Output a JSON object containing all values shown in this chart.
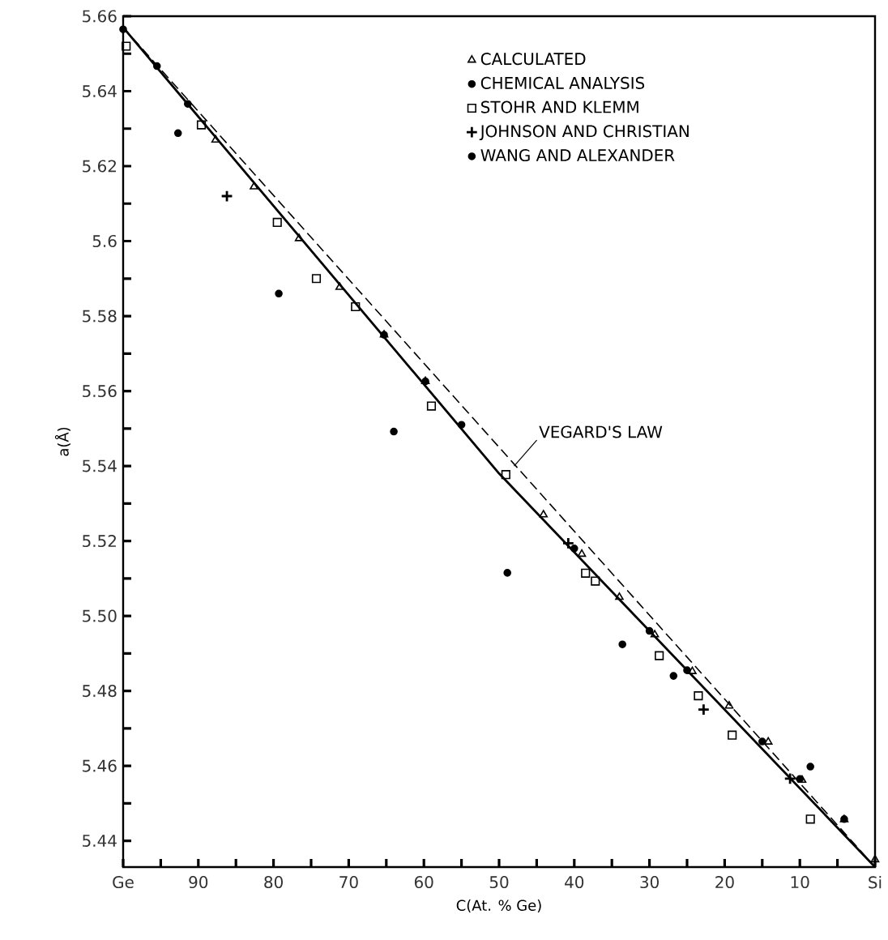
{
  "chart_data": {
    "type": "scatter",
    "xlabel": "C(At. % Ge)",
    "ylabel": "a(Å)",
    "xlim": [
      100,
      0
    ],
    "ylim": [
      5.433,
      5.66
    ],
    "xticks": [
      {
        "value": 100,
        "label": "Ge"
      },
      {
        "value": 95,
        "label": null
      },
      90,
      {
        "value": 85,
        "label": null
      },
      80,
      {
        "value": 75,
        "label": null
      },
      70,
      {
        "value": 65,
        "label": null
      },
      60,
      {
        "value": 55,
        "label": null
      },
      50,
      {
        "value": 45,
        "label": null
      },
      40,
      {
        "value": 35,
        "label": null
      },
      30,
      {
        "value": 25,
        "label": null
      },
      20,
      {
        "value": 15,
        "label": null
      },
      10,
      {
        "value": 5,
        "label": null
      },
      {
        "value": 0,
        "label": "Si"
      }
    ],
    "yticks": [
      5.66,
      {
        "value": 5.65,
        "label": null
      },
      5.64,
      {
        "value": 5.63,
        "label": null
      },
      5.62,
      {
        "value": 5.61,
        "label": null
      },
      5.6,
      {
        "value": 5.59,
        "label": null
      },
      5.58,
      {
        "value": 5.57,
        "label": null
      },
      5.56,
      {
        "value": 5.55,
        "label": null
      },
      5.54,
      {
        "value": 5.53,
        "label": null
      },
      5.52,
      {
        "value": 5.51,
        "label": null
      },
      {
        "value": 5.5,
        "label": "5.50"
      },
      {
        "value": 5.49,
        "label": null
      },
      5.48,
      {
        "value": 5.47,
        "label": null
      },
      5.46,
      {
        "value": 5.45,
        "label": null
      },
      5.44
    ],
    "legend": "top right",
    "grid": false,
    "annotations": [
      {
        "text": "VEGARD'S LAW",
        "x": 48,
        "y": 5.54
      }
    ],
    "series": [
      {
        "name": "CALCULATED",
        "marker": "triangle",
        "color": "#000000",
        "x": [
          87.7,
          82.6,
          76.6,
          71.2,
          65.3,
          59.8,
          44.1,
          39.0,
          34.0,
          29.3,
          24.3,
          19.4,
          14.2,
          9.7,
          4.1,
          0
        ],
        "values": [
          5.627,
          5.6145,
          5.6007,
          5.5877,
          5.575,
          5.5626,
          5.527,
          5.5165,
          5.505,
          5.495,
          5.4852,
          5.476,
          5.4664,
          5.4562,
          5.4457,
          5.435
        ]
      },
      {
        "name": "CHEMICAL ANALYSIS",
        "marker": "circle",
        "color": "#000000",
        "x": [
          65.3,
          59.8,
          55,
          40,
          30,
          25,
          15,
          10
        ],
        "values": [
          5.575,
          5.5626,
          5.551,
          5.518,
          5.496,
          5.4855,
          5.4665,
          5.4565
        ]
      },
      {
        "name": "STOHR AND KLEMM",
        "marker": "square",
        "color": "#000000",
        "x": [
          99.6,
          89.6,
          79.5,
          74.3,
          69.1,
          59.0,
          49.1,
          38.5,
          37.2,
          28.7,
          23.5,
          19.0,
          8.6
        ],
        "values": [
          5.652,
          5.631,
          5.605,
          5.59,
          5.5825,
          5.556,
          5.5377,
          5.5114,
          5.5093,
          5.4894,
          5.4787,
          5.4682,
          5.4458
        ]
      },
      {
        "name": "JOHNSON AND CHRISTIAN",
        "marker": "cross",
        "color": "#000000",
        "x": [
          86.2,
          40.8,
          22.8,
          11.3
        ],
        "values": [
          5.612,
          5.5194,
          5.475,
          5.4566
        ]
      },
      {
        "name": "WANG AND ALEXANDER",
        "marker": "circle",
        "color": "#000000",
        "x": [
          100,
          95.5,
          91.4,
          92.7,
          79.3,
          64.0,
          48.9,
          33.6,
          26.8,
          8.6,
          4.1
        ],
        "values": [
          5.6565,
          5.6467,
          5.6366,
          5.6288,
          5.586,
          5.5492,
          5.5115,
          5.4924,
          5.484,
          5.4598,
          5.4458
        ]
      },
      {
        "type": "line",
        "line_style": "solid",
        "marker": "none",
        "color": "#000000",
        "x": [
          100,
          50,
          0
        ],
        "values": [
          5.657,
          5.538,
          5.433
        ]
      },
      {
        "type": "line",
        "line_style": "dashed",
        "marker": "none",
        "color": "#000000",
        "x": [
          100,
          0
        ],
        "values": [
          5.657,
          5.433
        ]
      }
    ]
  }
}
